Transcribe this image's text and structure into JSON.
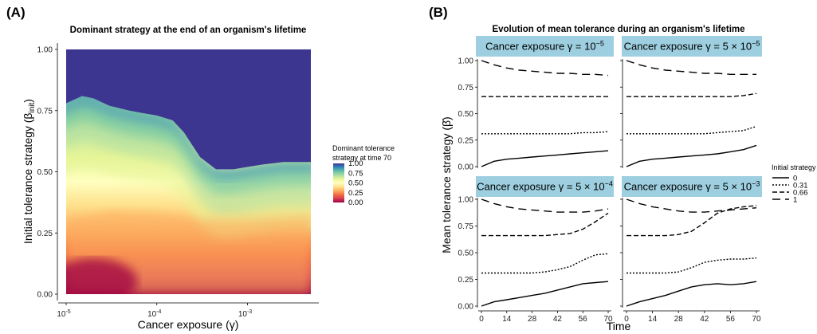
{
  "chart_data": [
    {
      "panel_label": "(A)",
      "type": "heatmap",
      "title": "Dominant strategy at the end of an organism's lifetime",
      "xlabel": "Cancer exposure (γ)",
      "ylabel": "Initial tolerance strategy (β",
      "ylabel_sub": "init",
      "ylabel_close": ")",
      "x_scale": "log10",
      "xlim": [
        1e-05,
        0.005
      ],
      "ylim": [
        0,
        1
      ],
      "x_ticks": [
        {
          "value": 1e-05,
          "base": "10",
          "exp": "-5"
        },
        {
          "value": 0.0001,
          "base": "10",
          "exp": "-4"
        },
        {
          "value": 0.001,
          "base": "10",
          "exp": "-3"
        }
      ],
      "y_ticks": [
        "0.00",
        "0.25",
        "0.50",
        "0.75",
        "1.00"
      ],
      "boundary_to_1": {
        "x": [
          1e-05,
          1.5e-05,
          2e-05,
          3e-05,
          5e-05,
          7e-05,
          0.0001,
          0.00015,
          0.0002,
          0.0003,
          0.00045,
          0.0007,
          0.001,
          0.0015,
          0.0025,
          0.005
        ],
        "y": [
          0.78,
          0.81,
          0.8,
          0.77,
          0.75,
          0.74,
          0.73,
          0.71,
          0.66,
          0.56,
          0.51,
          0.51,
          0.52,
          0.53,
          0.54,
          0.54
        ]
      },
      "fill_scale": {
        "title_line1": "Dominant tolerance",
        "title_line2": "strategy at time 70",
        "breaks": [
          "1.00",
          "0.75",
          "0.50",
          "0.25",
          "0.00"
        ],
        "colors": [
          "#3d3690",
          "#3288bd",
          "#66c2a5",
          "#abdda4",
          "#e6f598",
          "#ffffbf",
          "#fee08b",
          "#fdae61",
          "#f46d43",
          "#d53e4f",
          "#9e0142"
        ]
      }
    },
    {
      "panel_label": "(B)",
      "type": "line",
      "title": "Evolution of mean tolerance during an organism's lifetime",
      "xlabel": "Time",
      "ylabel": "Mean tolerance strategy (β̄)",
      "xlim": [
        0,
        70
      ],
      "ylim": [
        0,
        1
      ],
      "x_ticks": [
        "0",
        "14",
        "28",
        "42",
        "56",
        "70"
      ],
      "y_ticks": [
        "0.00",
        "0.25",
        "0.50",
        "0.75",
        "1.00"
      ],
      "legend": {
        "title": "Initial strategy",
        "labels": [
          "0",
          "0.31",
          "0.66",
          "1"
        ]
      },
      "x": [
        0,
        7,
        14,
        21,
        28,
        35,
        42,
        49,
        56,
        63,
        70
      ],
      "facets": [
        {
          "strip": "Cancer exposure γ = 10",
          "strip_exp": "−5",
          "strip_tail": "",
          "series": [
            {
              "values": [
                0.0,
                0.05,
                0.07,
                0.08,
                0.09,
                0.1,
                0.11,
                0.12,
                0.13,
                0.14,
                0.15
              ]
            },
            {
              "values": [
                0.31,
                0.31,
                0.31,
                0.31,
                0.31,
                0.31,
                0.31,
                0.31,
                0.32,
                0.32,
                0.33
              ]
            },
            {
              "values": [
                0.66,
                0.66,
                0.66,
                0.66,
                0.66,
                0.66,
                0.66,
                0.66,
                0.66,
                0.66,
                0.66
              ]
            },
            {
              "values": [
                1.0,
                0.96,
                0.93,
                0.91,
                0.9,
                0.89,
                0.88,
                0.88,
                0.87,
                0.87,
                0.86
              ]
            }
          ]
        },
        {
          "strip": "Cancer exposure γ = 5 × 10",
          "strip_exp": "−5",
          "strip_tail": "",
          "series": [
            {
              "values": [
                0.0,
                0.05,
                0.07,
                0.08,
                0.09,
                0.1,
                0.11,
                0.12,
                0.14,
                0.16,
                0.2
              ]
            },
            {
              "values": [
                0.31,
                0.31,
                0.31,
                0.31,
                0.31,
                0.31,
                0.31,
                0.32,
                0.33,
                0.34,
                0.38
              ]
            },
            {
              "values": [
                0.66,
                0.66,
                0.66,
                0.66,
                0.66,
                0.66,
                0.66,
                0.66,
                0.66,
                0.67,
                0.69
              ]
            },
            {
              "values": [
                1.0,
                0.96,
                0.93,
                0.91,
                0.9,
                0.89,
                0.88,
                0.88,
                0.87,
                0.87,
                0.87
              ]
            }
          ]
        },
        {
          "strip": "Cancer exposure γ = 5 × 10",
          "strip_exp": "−4",
          "strip_tail": "",
          "series": [
            {
              "values": [
                0.0,
                0.04,
                0.06,
                0.08,
                0.1,
                0.12,
                0.15,
                0.18,
                0.21,
                0.22,
                0.23
              ]
            },
            {
              "values": [
                0.31,
                0.31,
                0.31,
                0.31,
                0.31,
                0.32,
                0.34,
                0.37,
                0.43,
                0.48,
                0.49
              ]
            },
            {
              "values": [
                0.66,
                0.66,
                0.66,
                0.66,
                0.66,
                0.66,
                0.67,
                0.68,
                0.72,
                0.79,
                0.87
              ]
            },
            {
              "values": [
                1.0,
                0.96,
                0.93,
                0.91,
                0.9,
                0.89,
                0.88,
                0.88,
                0.88,
                0.89,
                0.91
              ]
            }
          ]
        },
        {
          "strip": "Cancer exposure γ = 5 × 10",
          "strip_exp": "−3",
          "strip_tail": "",
          "series": [
            {
              "values": [
                0.0,
                0.04,
                0.07,
                0.1,
                0.14,
                0.18,
                0.2,
                0.21,
                0.2,
                0.21,
                0.23
              ]
            },
            {
              "values": [
                0.31,
                0.31,
                0.31,
                0.31,
                0.32,
                0.36,
                0.41,
                0.43,
                0.44,
                0.44,
                0.45
              ]
            },
            {
              "values": [
                0.66,
                0.66,
                0.66,
                0.66,
                0.67,
                0.7,
                0.78,
                0.87,
                0.91,
                0.93,
                0.94
              ]
            },
            {
              "values": [
                1.0,
                0.96,
                0.93,
                0.91,
                0.89,
                0.88,
                0.88,
                0.89,
                0.9,
                0.91,
                0.92
              ]
            }
          ]
        }
      ]
    }
  ]
}
